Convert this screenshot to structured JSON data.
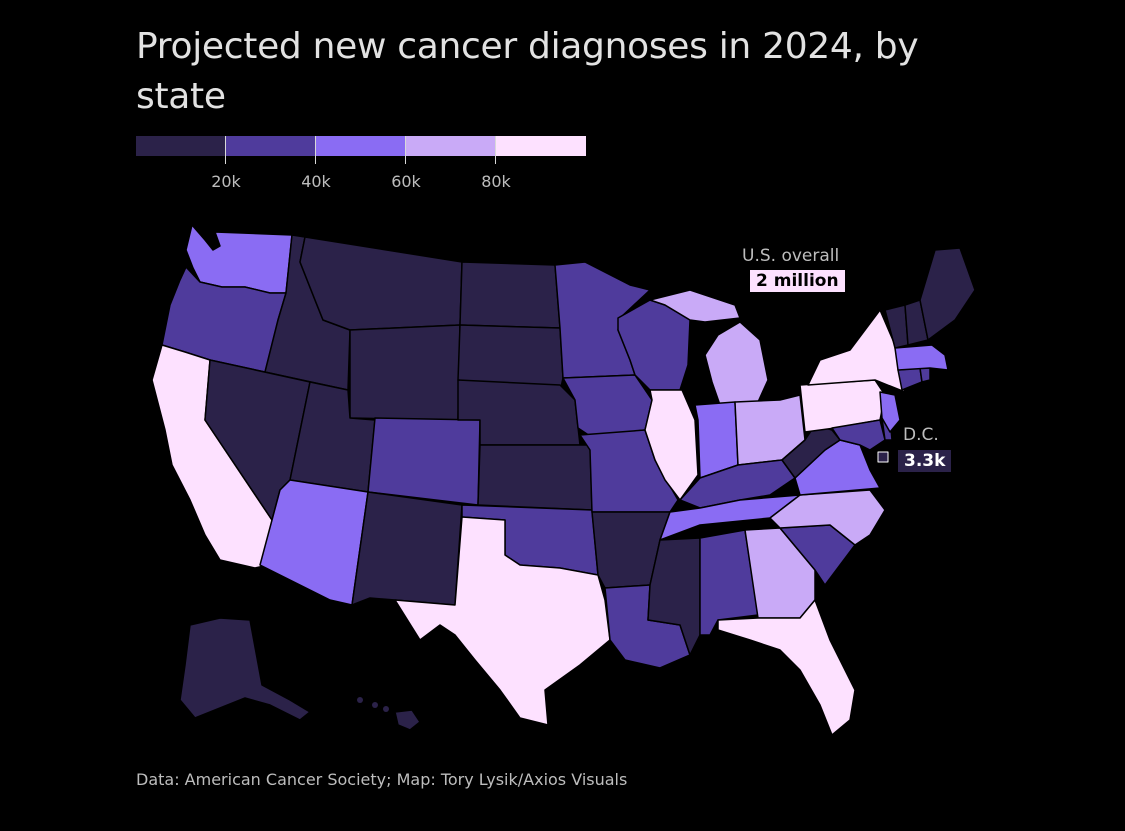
{
  "title": "Projected new cancer diagnoses in 2024, by state",
  "legend": {
    "colors": [
      "#2b2249",
      "#4f3b9c",
      "#8a6cf3",
      "#c9aaf7",
      "#fde1ff"
    ],
    "ticks": [
      "20k",
      "40k",
      "60k",
      "80k"
    ]
  },
  "callouts": {
    "us_label": "U.S. overall",
    "us_value": "2 million",
    "dc_label": "D.C.",
    "dc_value": "3.3k"
  },
  "source": "Data: American Cancer Society; Map: Tory Lysik/Axios Visuals"
}
